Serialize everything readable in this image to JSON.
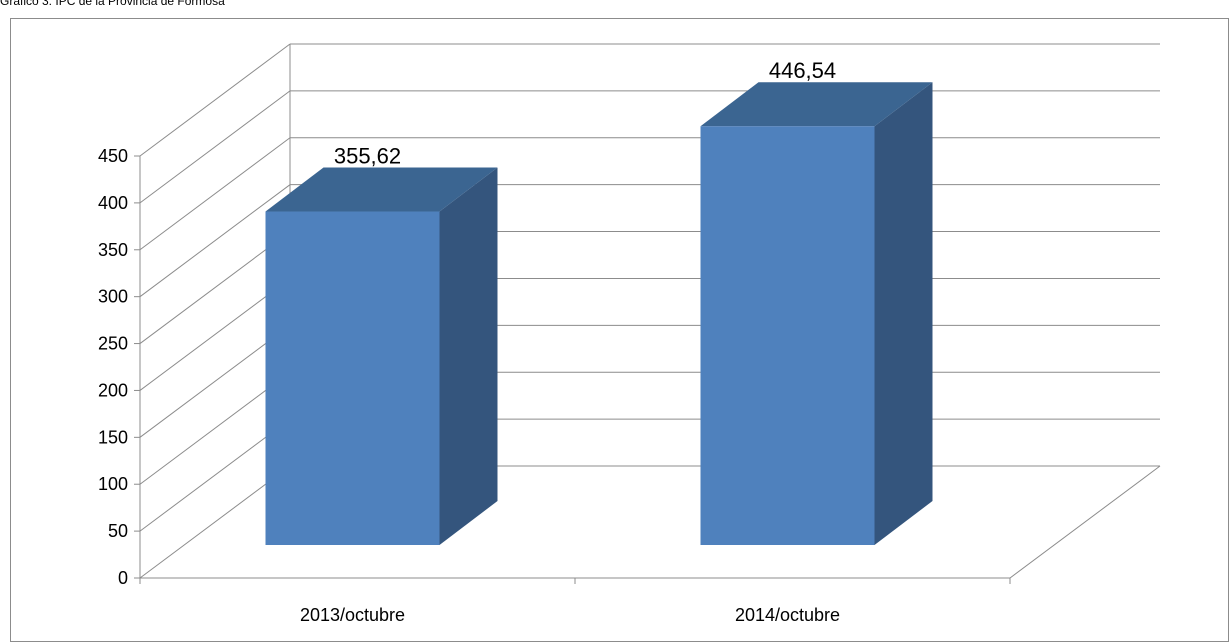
{
  "caption": "Gráfico 3: IPC de la Provincia de Formosa",
  "chart_data": {
    "type": "bar",
    "title": "",
    "xlabel": "",
    "ylabel": "",
    "categories": [
      "2013/octubre",
      "2014/octubre"
    ],
    "values": [
      355.62,
      446.54
    ],
    "data_labels": [
      "355,62",
      "446,54"
    ],
    "ylim": [
      0,
      450
    ],
    "yticks": [
      0,
      50,
      100,
      150,
      200,
      250,
      300,
      350,
      400,
      450
    ],
    "grid": true,
    "legend": "none",
    "bar_color": "#4f81bd",
    "bar_top_color": "#3b6591",
    "bar_side_color": "#34557d"
  }
}
